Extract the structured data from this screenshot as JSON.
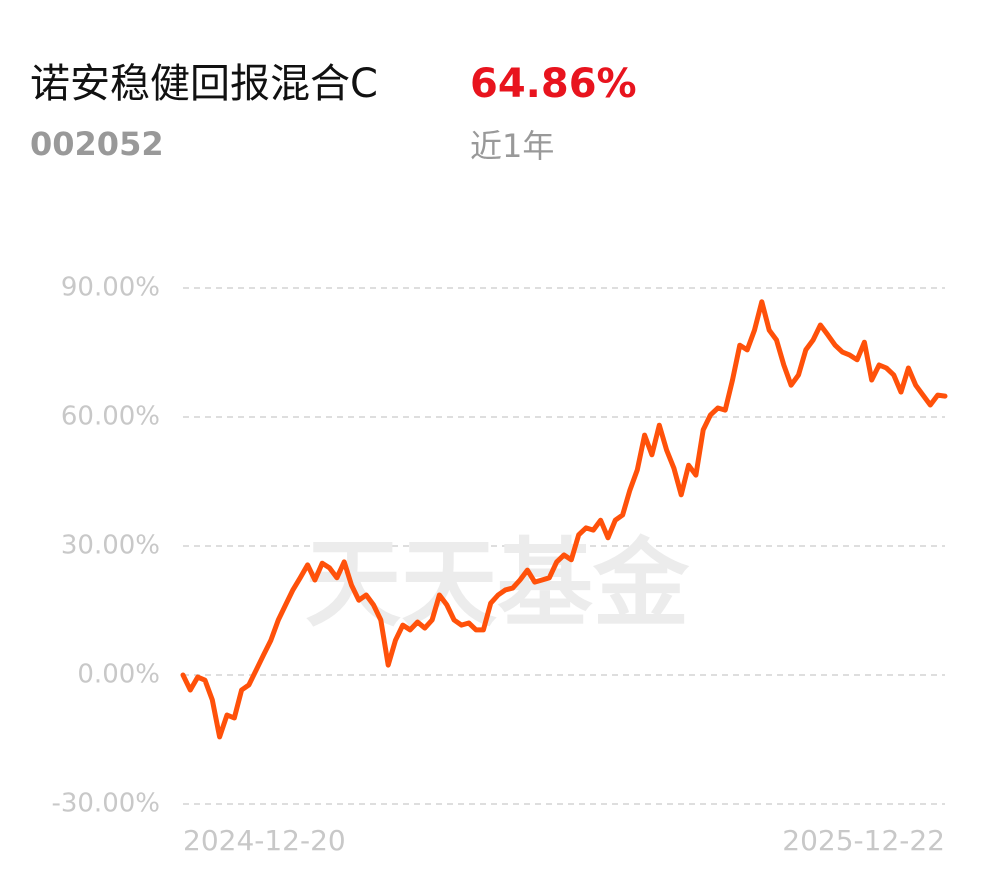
{
  "header": {
    "fund_name": "诺安稳健回报混合C",
    "fund_code": "002052",
    "return_label": "64.86%",
    "period": "近1年"
  },
  "chart_data": {
    "type": "line",
    "watermark": "天天基金",
    "x_labels": [
      "2024-12-20",
      "2025-12-22"
    ],
    "series": [
      {
        "name": "诺安稳健回报混合C",
        "color": "#ff510a",
        "values": [
          0,
          -3.5,
          -0.5,
          -1.2,
          -5.8,
          -14.4,
          -9.3,
          -10.0,
          -3.5,
          -2.3,
          1.2,
          4.7,
          8.1,
          12.8,
          16.3,
          19.8,
          22.6,
          25.6,
          22.1,
          26.0,
          24.9,
          22.6,
          26.3,
          20.9,
          17.4,
          18.6,
          16.3,
          12.8,
          2.3,
          8.1,
          11.6,
          10.5,
          12.3,
          10.9,
          12.8,
          18.6,
          16.3,
          12.8,
          11.6,
          12.1,
          10.5,
          10.5,
          16.7,
          18.6,
          19.8,
          20.2,
          22.1,
          24.4,
          21.6,
          22.1,
          22.6,
          26.3,
          27.9,
          26.8,
          32.6,
          34.2,
          33.7,
          36.0,
          31.9,
          36.0,
          37.2,
          43.0,
          47.7,
          55.8,
          51.2,
          58.1,
          52.3,
          48.1,
          41.9,
          48.8,
          46.5,
          57.0,
          60.5,
          62.1,
          61.6,
          68.6,
          76.7,
          75.6,
          80.2,
          86.8,
          80.2,
          77.9,
          72.1,
          67.4,
          69.8,
          75.6,
          77.9,
          81.4,
          79.1,
          76.7,
          75.1,
          74.4,
          73.3,
          77.4,
          68.6,
          72.1,
          71.4,
          69.8,
          65.8,
          71.4,
          67.4,
          65.1,
          62.8,
          65.1,
          64.86
        ]
      }
    ],
    "ylim": [
      -30,
      90
    ],
    "yticks": [
      {
        "value": -30,
        "label": "-30.00%"
      },
      {
        "value": 0,
        "label": "0.00%"
      },
      {
        "value": 30,
        "label": "30.00%"
      },
      {
        "value": 60,
        "label": "60.00%"
      },
      {
        "value": 90,
        "label": "90.00%"
      }
    ],
    "grid": true
  }
}
